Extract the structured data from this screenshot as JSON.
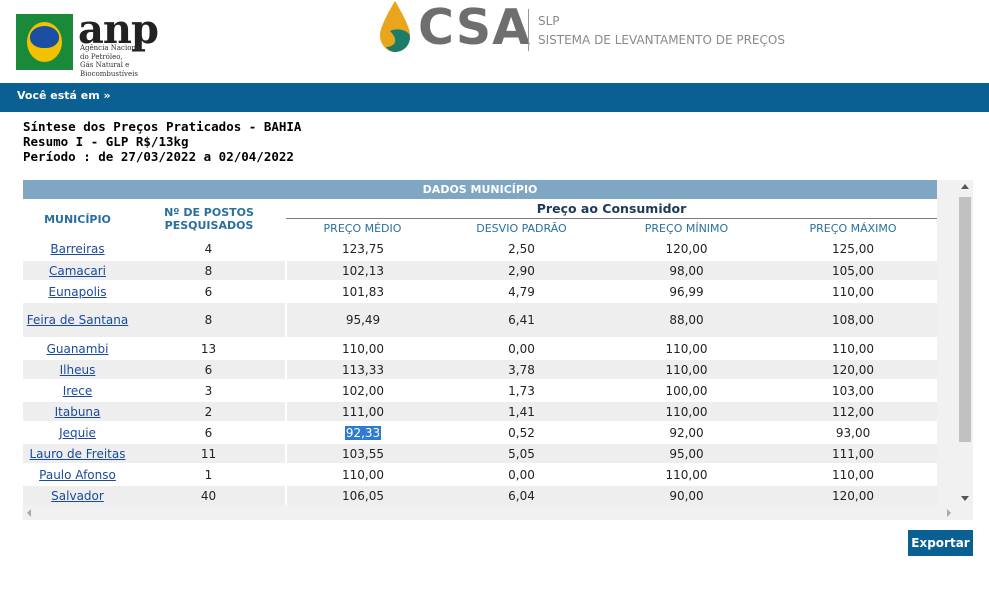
{
  "header": {
    "anp_logo_text": "anp",
    "anp_logo_subtitle": "Agência Nacional\ndo Petróleo,\nGás Natural e Biocombustíveis",
    "csa_logo_text": "CSA",
    "slp_label": "SLP",
    "system_name": "SISTEMA DE LEVANTAMENTO DE PREÇOS"
  },
  "breadcrumb": {
    "label": "Você está em »"
  },
  "titles": {
    "line1": "Síntese dos Preços Praticados - BAHIA",
    "line2": "Resumo I - GLP R$/13kg",
    "line3": "Período : de 27/03/2022 a 02/04/2022"
  },
  "table": {
    "section_title": "DADOS MUNICÍPIO",
    "col_municipio": "MUNICÍPIO",
    "col_postos": "Nº DE POSTOS PESQUISADOS",
    "group_label": "Preço ao Consumidor",
    "col_medio": "PREÇO MÉDIO",
    "col_desvio": "DESVIO PADRÃO",
    "col_minimo": "PREÇO MÍNIMO",
    "col_maximo": "PREÇO MÁXIMO",
    "rows": [
      {
        "municipio": "Barreiras",
        "postos": "4",
        "medio": "123,75",
        "desvio": "2,50",
        "minimo": "120,00",
        "maximo": "125,00"
      },
      {
        "municipio": "Camacari",
        "postos": "8",
        "medio": "102,13",
        "desvio": "2,90",
        "minimo": "98,00",
        "maximo": "105,00"
      },
      {
        "municipio": "Eunapolis",
        "postos": "6",
        "medio": "101,83",
        "desvio": "4,79",
        "minimo": "96,99",
        "maximo": "110,00"
      },
      {
        "municipio": "Feira de Santana",
        "postos": "8",
        "medio": "95,49",
        "desvio": "6,41",
        "minimo": "88,00",
        "maximo": "108,00"
      },
      {
        "municipio": "Guanambi",
        "postos": "13",
        "medio": "110,00",
        "desvio": "0,00",
        "minimo": "110,00",
        "maximo": "110,00"
      },
      {
        "municipio": "Ilheus",
        "postos": "6",
        "medio": "113,33",
        "desvio": "3,78",
        "minimo": "110,00",
        "maximo": "120,00"
      },
      {
        "municipio": "Irece",
        "postos": "3",
        "medio": "102,00",
        "desvio": "1,73",
        "minimo": "100,00",
        "maximo": "103,00"
      },
      {
        "municipio": "Itabuna",
        "postos": "2",
        "medio": "111,00",
        "desvio": "1,41",
        "minimo": "110,00",
        "maximo": "112,00"
      },
      {
        "municipio": "Jequie",
        "postos": "6",
        "medio": "92,33",
        "desvio": "0,52",
        "minimo": "92,00",
        "maximo": "93,00"
      },
      {
        "municipio": "Lauro de Freitas",
        "postos": "11",
        "medio": "103,55",
        "desvio": "5,05",
        "minimo": "95,00",
        "maximo": "111,00"
      },
      {
        "municipio": "Paulo Afonso",
        "postos": "1",
        "medio": "110,00",
        "desvio": "0,00",
        "minimo": "110,00",
        "maximo": "110,00"
      },
      {
        "municipio": "Salvador",
        "postos": "40",
        "medio": "106,05",
        "desvio": "6,04",
        "minimo": "90,00",
        "maximo": "120,00"
      }
    ]
  },
  "actions": {
    "export_label": "Exportar"
  },
  "colors": {
    "header_bar": "#0a5f93",
    "section_header": "#7fa6c2",
    "link": "#1a4a9c",
    "selection": "#2f7bd1"
  }
}
